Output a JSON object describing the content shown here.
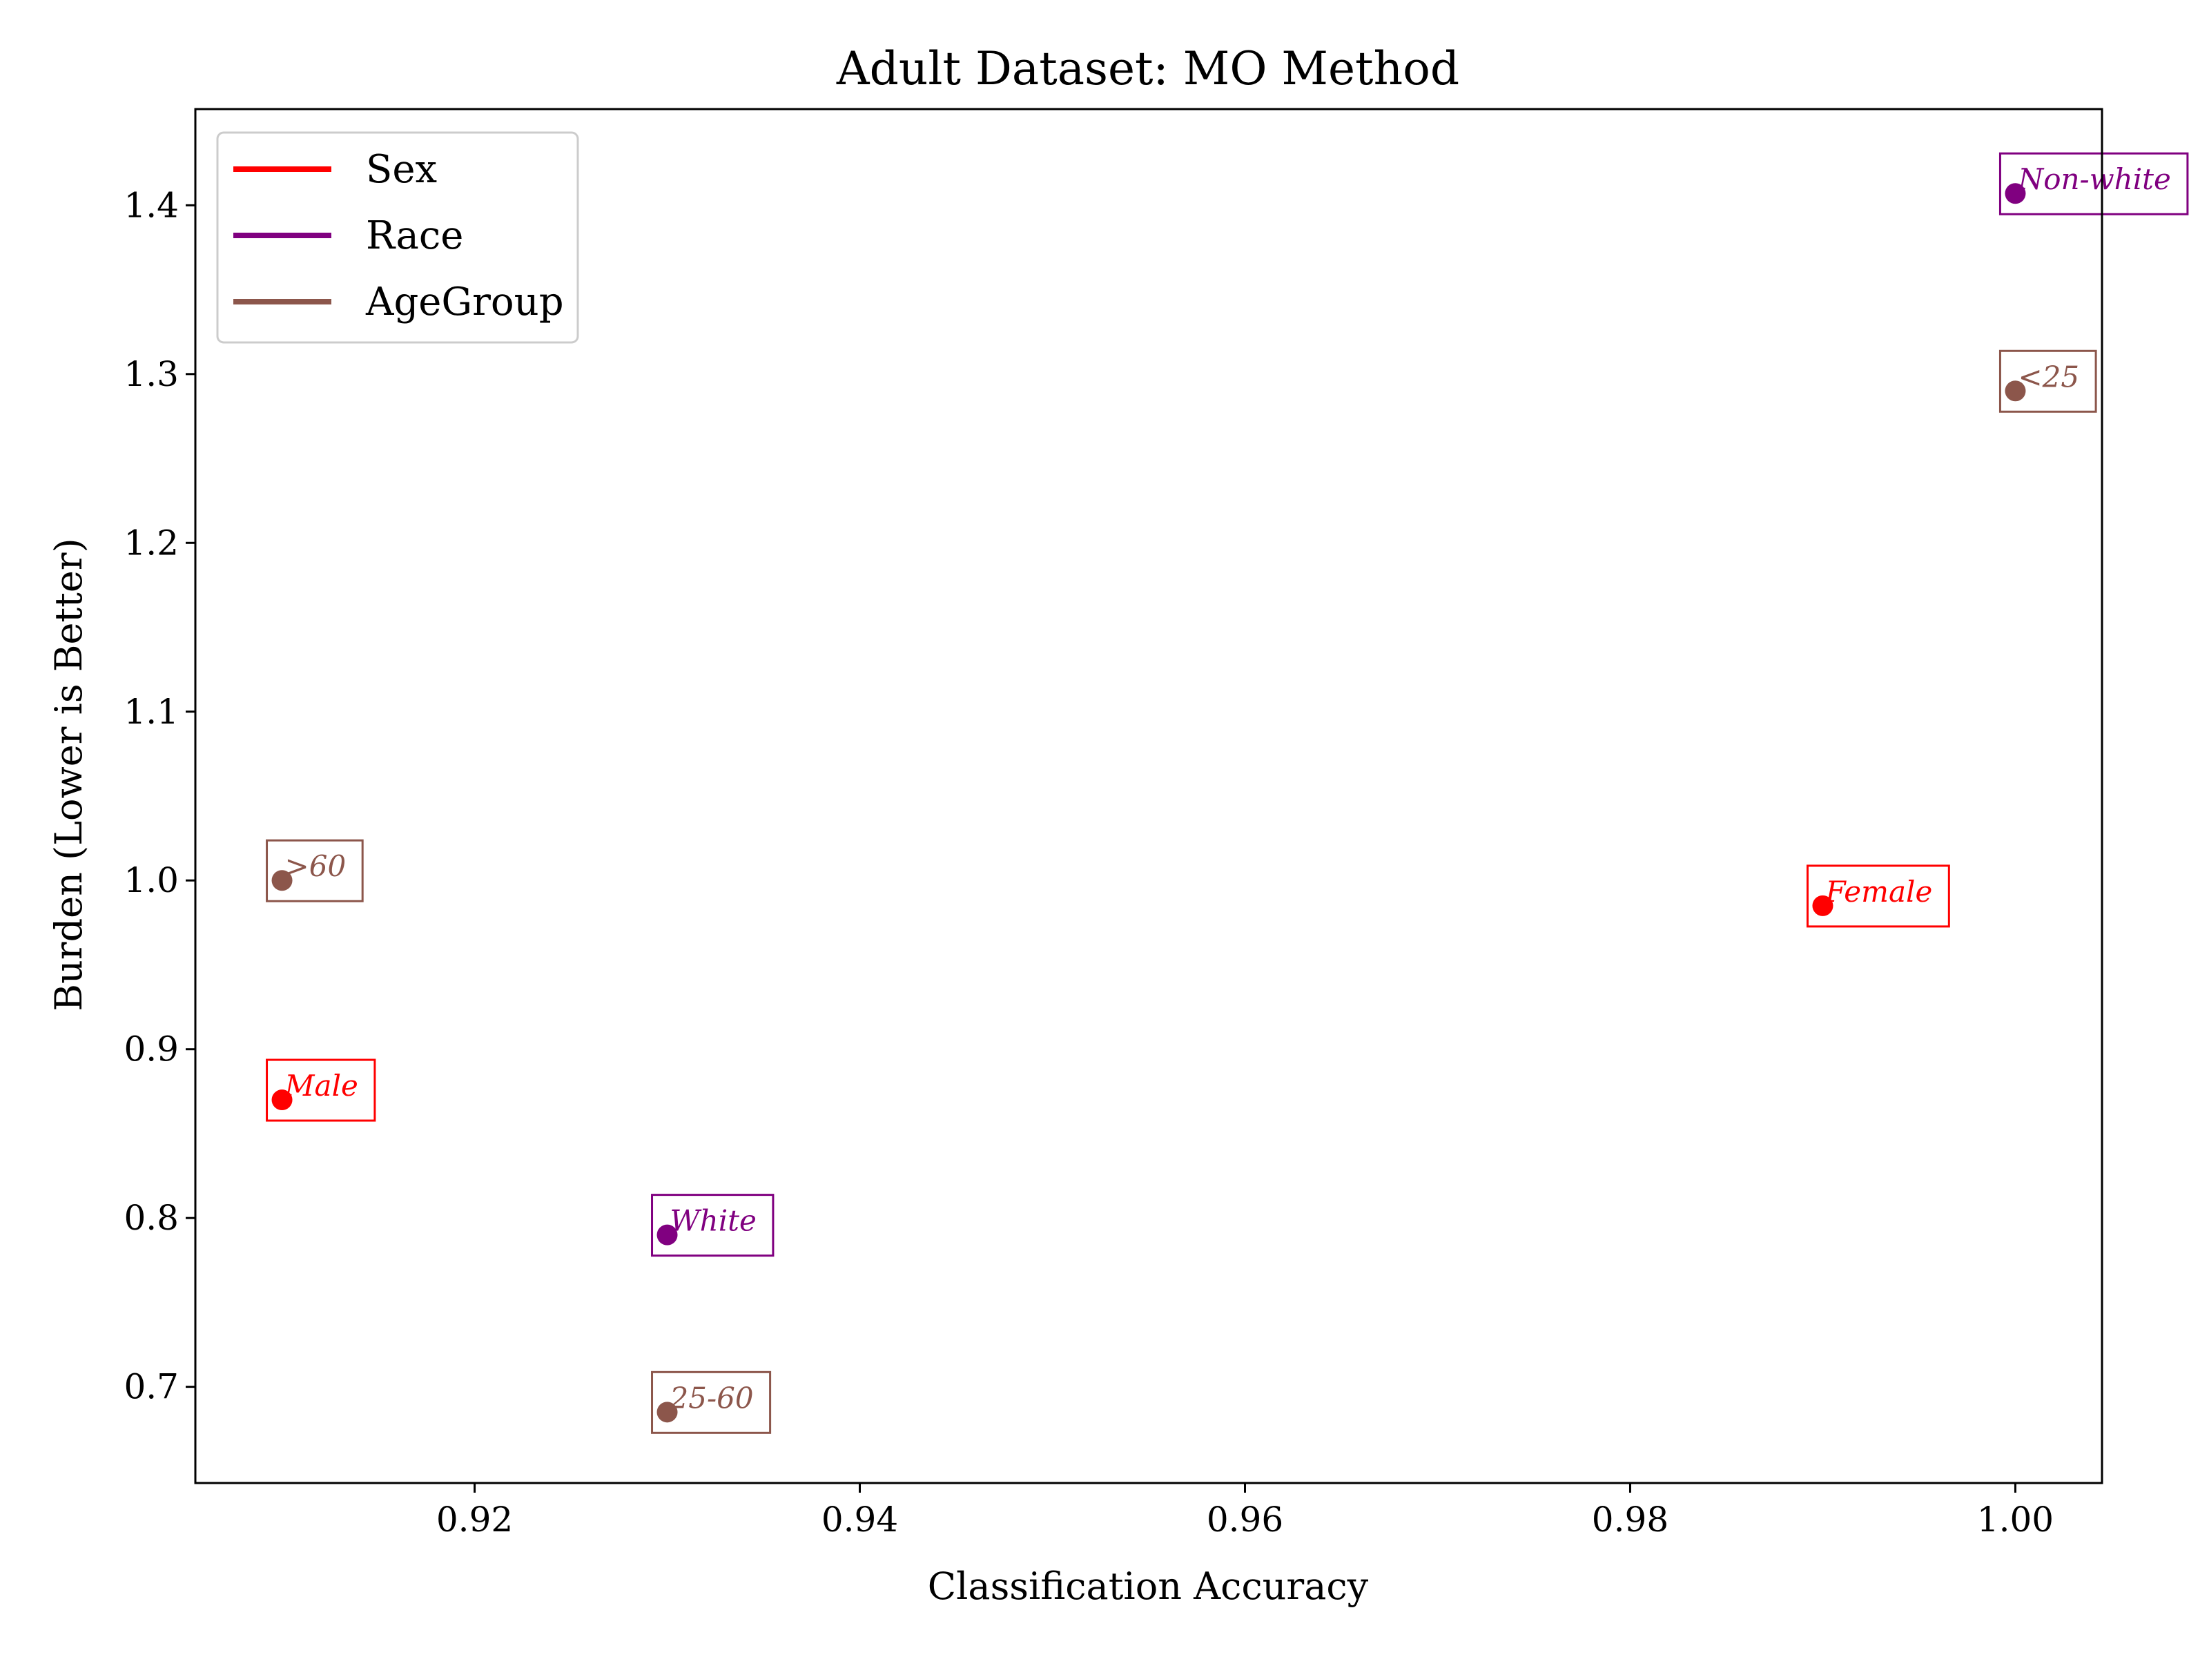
{
  "chart_data": {
    "type": "scatter",
    "title": "Adult Dataset: MO Method",
    "xlabel": "Classification Accuracy",
    "ylabel": "Burden (Lower is Better)",
    "xlim": [
      0.9055,
      1.0045
    ],
    "ylim": [
      0.643,
      1.457
    ],
    "xticks": [
      0.92,
      0.94,
      0.96,
      0.98,
      1.0
    ],
    "xtick_labels": [
      "0.92",
      "0.94",
      "0.96",
      "0.98",
      "1.00"
    ],
    "yticks": [
      0.7,
      0.8,
      0.9,
      1.0,
      1.1,
      1.2,
      1.3,
      1.4
    ],
    "ytick_labels": [
      "0.7",
      "0.8",
      "0.9",
      "1.0",
      "1.1",
      "1.2",
      "1.3",
      "1.4"
    ],
    "grid": false,
    "legend_position": "upper-left",
    "series": [
      {
        "name": "Sex",
        "color": "#ff0000",
        "points": [
          {
            "label": "Male",
            "x": 0.91,
            "y": 0.87
          },
          {
            "label": "Female",
            "x": 0.99,
            "y": 0.985
          }
        ]
      },
      {
        "name": "Race",
        "color": "#800080",
        "points": [
          {
            "label": "White",
            "x": 0.93,
            "y": 0.79
          },
          {
            "label": "Non-white",
            "x": 1.0,
            "y": 1.407
          }
        ]
      },
      {
        "name": "AgeGroup",
        "color": "#8c564b",
        "points": [
          {
            "label": ">60",
            "x": 0.91,
            "y": 1.0
          },
          {
            "label": "25-60",
            "x": 0.93,
            "y": 0.685
          },
          {
            "label": "<25",
            "x": 1.0,
            "y": 1.29
          }
        ]
      }
    ]
  }
}
